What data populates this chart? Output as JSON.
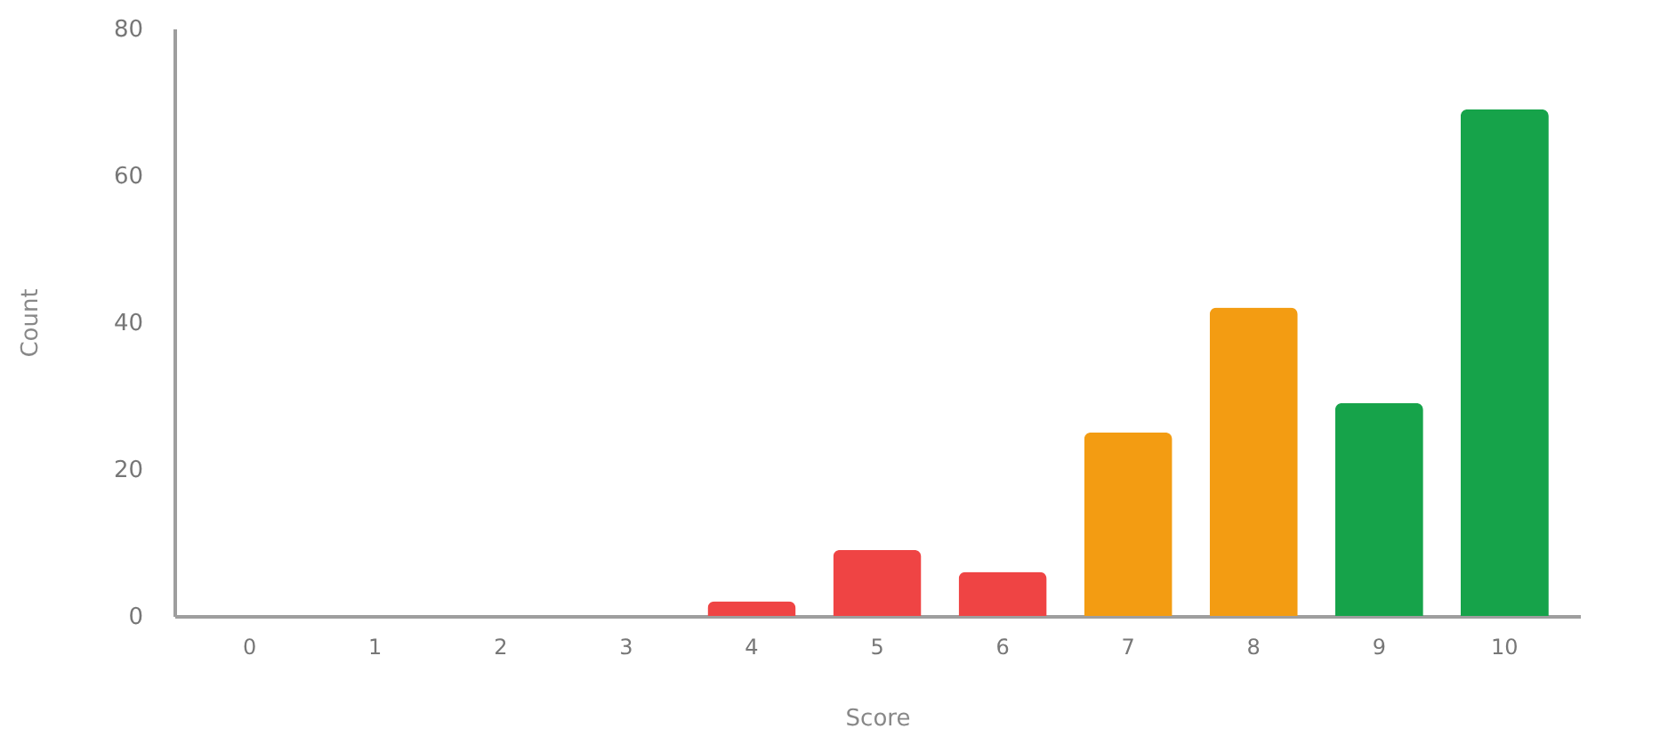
{
  "chart_data": {
    "type": "bar",
    "xlabel": "Score",
    "ylabel": "Count",
    "categories": [
      "0",
      "1",
      "2",
      "3",
      "4",
      "5",
      "6",
      "7",
      "8",
      "9",
      "10"
    ],
    "values": [
      0,
      0,
      0,
      0,
      2,
      9,
      6,
      25,
      42,
      29,
      69
    ],
    "colors": [
      "#ef4444",
      "#ef4444",
      "#ef4444",
      "#ef4444",
      "#ef4444",
      "#ef4444",
      "#ef4444",
      "#f39c12",
      "#f39c12",
      "#16a34a",
      "#16a34a"
    ],
    "ylim": [
      0,
      80
    ],
    "yticks": [
      0,
      20,
      40,
      60,
      80
    ],
    "grid": false
  }
}
